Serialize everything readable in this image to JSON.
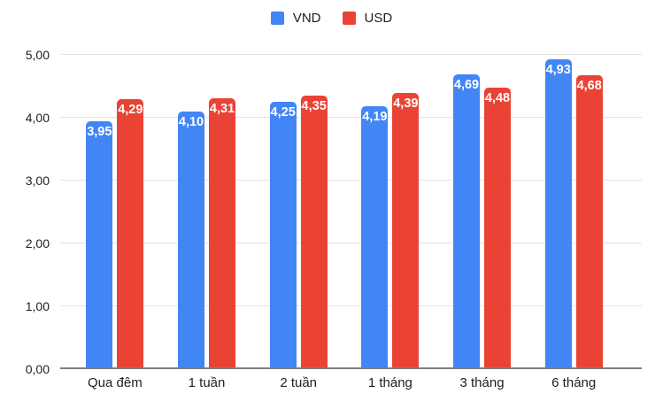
{
  "chart_data": {
    "type": "bar",
    "categories": [
      "Qua đêm",
      "1 tuần",
      "2 tuần",
      "1 tháng",
      "3 tháng",
      "6 tháng"
    ],
    "series": [
      {
        "name": "VND",
        "color": "#4285F4",
        "values": [
          3.95,
          4.1,
          4.25,
          4.19,
          4.69,
          4.93
        ],
        "value_labels": [
          "3,95",
          "4,10",
          "4,25",
          "4,19",
          "4,69",
          "4,93"
        ]
      },
      {
        "name": "USD",
        "color": "#EA4335",
        "values": [
          4.29,
          4.31,
          4.35,
          4.39,
          4.48,
          4.68
        ],
        "value_labels": [
          "4,29",
          "4,31",
          "4,35",
          "4,39",
          "4,48",
          "4,68"
        ]
      }
    ],
    "ylim": [
      0,
      5
    ],
    "yticks": [
      {
        "value": 0,
        "label": "0,00"
      },
      {
        "value": 1,
        "label": "1,00"
      },
      {
        "value": 2,
        "label": "2,00"
      },
      {
        "value": 3,
        "label": "3,00"
      },
      {
        "value": 4,
        "label": "4,00"
      },
      {
        "value": 5,
        "label": "5,00"
      }
    ],
    "grid": true,
    "legend_position": "top-center",
    "value_label_color": "#ffffff",
    "baseline_color": "#7f7f7f",
    "gridline_color": "#e3e3e3"
  }
}
